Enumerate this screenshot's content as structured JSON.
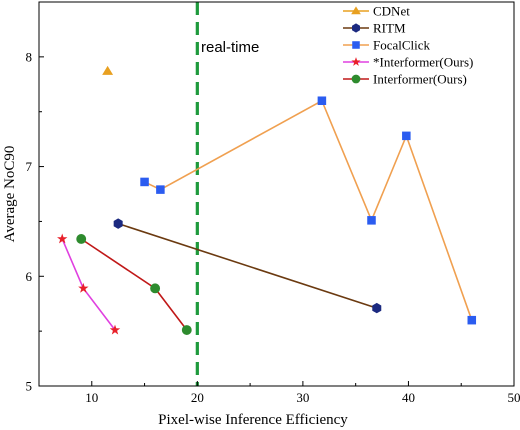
{
  "chart_data": {
    "type": "scatter",
    "title": "",
    "xlabel": "Pixel-wise Inference Efficiency",
    "ylabel": "Average NoC90",
    "xlim": [
      5,
      50
    ],
    "ylim": [
      5,
      8.5
    ],
    "xticks": [
      10,
      20,
      30,
      40,
      50
    ],
    "yticks": [
      5,
      6,
      7,
      8
    ],
    "grid": false,
    "legend_position": "top-right",
    "annotation": {
      "text": "real-time",
      "x": 20
    },
    "series": [
      {
        "name": "CDNet",
        "marker": "triangle",
        "color": "#e8a020",
        "line": false,
        "points": [
          [
            11.5,
            7.87
          ]
        ]
      },
      {
        "name": "RITM",
        "marker": "hexagon",
        "color": "#1c2a80",
        "line_color": "#6b3a10",
        "line": true,
        "points": [
          [
            12.5,
            6.48
          ],
          [
            37.0,
            5.71
          ]
        ]
      },
      {
        "name": "FocalClick",
        "marker": "square",
        "color": "#2b5cf0",
        "line_color": "#f0a050",
        "line": true,
        "points": [
          [
            15.0,
            6.86
          ],
          [
            16.5,
            6.79
          ],
          [
            31.8,
            7.6
          ],
          [
            36.5,
            6.51
          ],
          [
            39.8,
            7.28
          ],
          [
            46.0,
            5.6
          ]
        ]
      },
      {
        "name": "*Interformer(Ours)",
        "marker": "star",
        "color": "#e8202a",
        "line_color": "#e040e0",
        "line": true,
        "points": [
          [
            7.2,
            6.34
          ],
          [
            9.2,
            5.89
          ],
          [
            12.2,
            5.51
          ]
        ]
      },
      {
        "name": "Interformer(Ours)",
        "marker": "circle",
        "color": "#2e8b2e",
        "line_color": "#c01818",
        "line": true,
        "points": [
          [
            9.0,
            6.34
          ],
          [
            16.0,
            5.89
          ],
          [
            19.0,
            5.51
          ]
        ]
      }
    ]
  }
}
